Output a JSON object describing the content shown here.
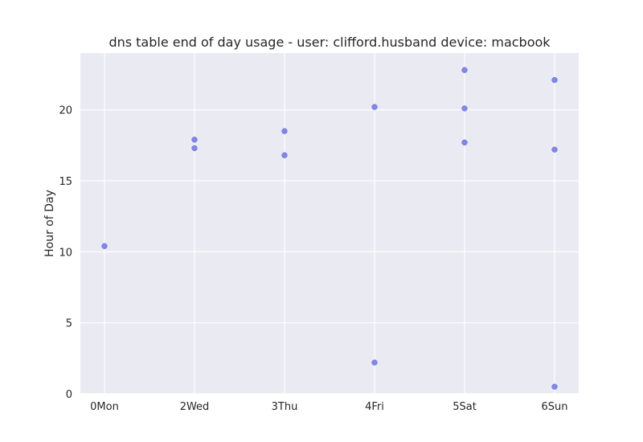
{
  "chart_data": {
    "type": "scatter",
    "title": "dns table end of day usage -  user: clifford.husband device: macbook",
    "xlabel": "",
    "ylabel": "Hour of Day",
    "categories": [
      "0Mon",
      "2Wed",
      "3Thu",
      "4Fri",
      "5Sat",
      "6Sun"
    ],
    "ylim": [
      0,
      24
    ],
    "yticks": [
      0,
      5,
      10,
      15,
      20
    ],
    "grid": true,
    "background": "#eaeaf2",
    "point_color": "#6c74ea",
    "points": [
      {
        "category": "0Mon",
        "y": 10.4
      },
      {
        "category": "2Wed",
        "y": 17.9
      },
      {
        "category": "2Wed",
        "y": 17.3
      },
      {
        "category": "3Thu",
        "y": 18.5
      },
      {
        "category": "3Thu",
        "y": 16.8
      },
      {
        "category": "4Fri",
        "y": 20.2
      },
      {
        "category": "4Fri",
        "y": 2.2
      },
      {
        "category": "5Sat",
        "y": 22.8
      },
      {
        "category": "5Sat",
        "y": 20.1
      },
      {
        "category": "5Sat",
        "y": 17.7
      },
      {
        "category": "6Sun",
        "y": 22.1
      },
      {
        "category": "6Sun",
        "y": 17.2
      },
      {
        "category": "6Sun",
        "y": 0.5
      }
    ]
  }
}
